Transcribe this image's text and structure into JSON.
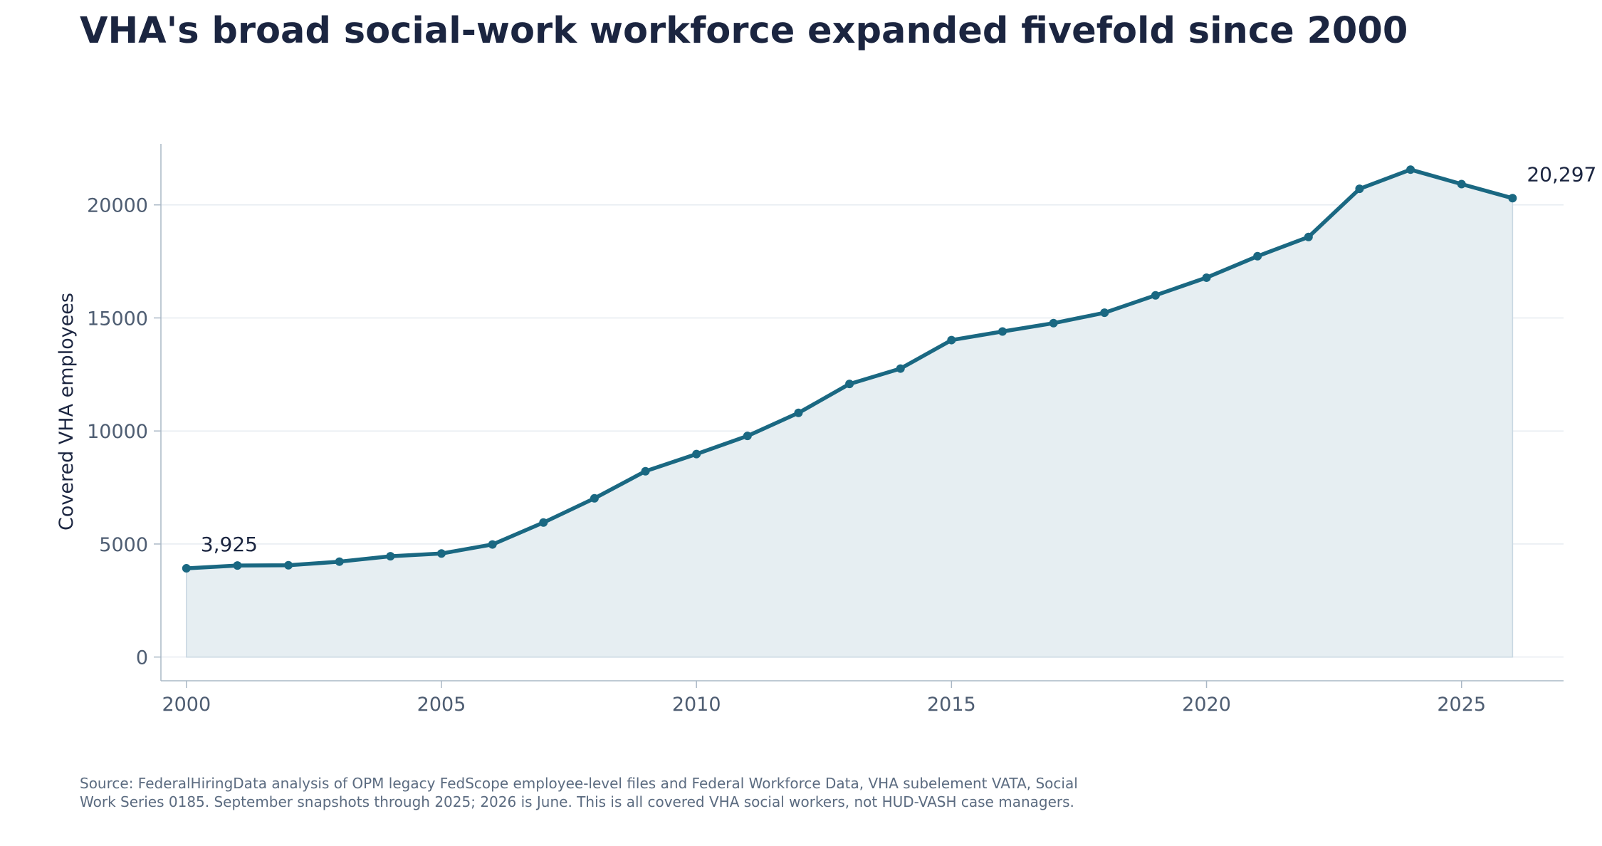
{
  "chart_data": {
    "type": "line",
    "title": "VHA's broad social-work workforce expanded fivefold since 2000",
    "xlabel": "",
    "ylabel": "Covered VHA employees",
    "x": [
      2000,
      2001,
      2002,
      2003,
      2004,
      2005,
      2006,
      2007,
      2008,
      2009,
      2010,
      2011,
      2012,
      2013,
      2014,
      2015,
      2016,
      2017,
      2018,
      2019,
      2020,
      2021,
      2022,
      2023,
      2024,
      2025,
      2026
    ],
    "series": [
      {
        "values": [
          3925,
          4050,
          4060,
          4220,
          4460,
          4580,
          4980,
          5950,
          7020,
          8220,
          8980,
          9780,
          10800,
          12080,
          12760,
          14020,
          14400,
          14770,
          15230,
          16000,
          16780,
          17730,
          18580,
          20710,
          21560,
          20920,
          20297
        ],
        "color": "#1a6882",
        "fill_color": "#e6eef2"
      }
    ],
    "xlim": [
      1999.5,
      2027.0
    ],
    "ylim": [
      -1050,
      22700
    ],
    "xticks": [
      2000,
      2005,
      2010,
      2015,
      2020,
      2025
    ],
    "yticks": [
      0,
      5000,
      10000,
      15000,
      20000
    ],
    "annotations": [
      {
        "x": 2000,
        "y": 3925,
        "text": "3,925"
      },
      {
        "x": 2026,
        "y": 20297,
        "text": "20,297"
      }
    ],
    "grid": "horizontal",
    "legend": "none",
    "area_fill": true
  },
  "source_note": "Source: FederalHiringData analysis of OPM legacy FedScope employee-level files and Federal Workforce Data, VHA subelement VATA, Social Work Series 0185. September snapshots through 2025; 2026 is June. This is all covered VHA social workers, not HUD-VASH case managers."
}
